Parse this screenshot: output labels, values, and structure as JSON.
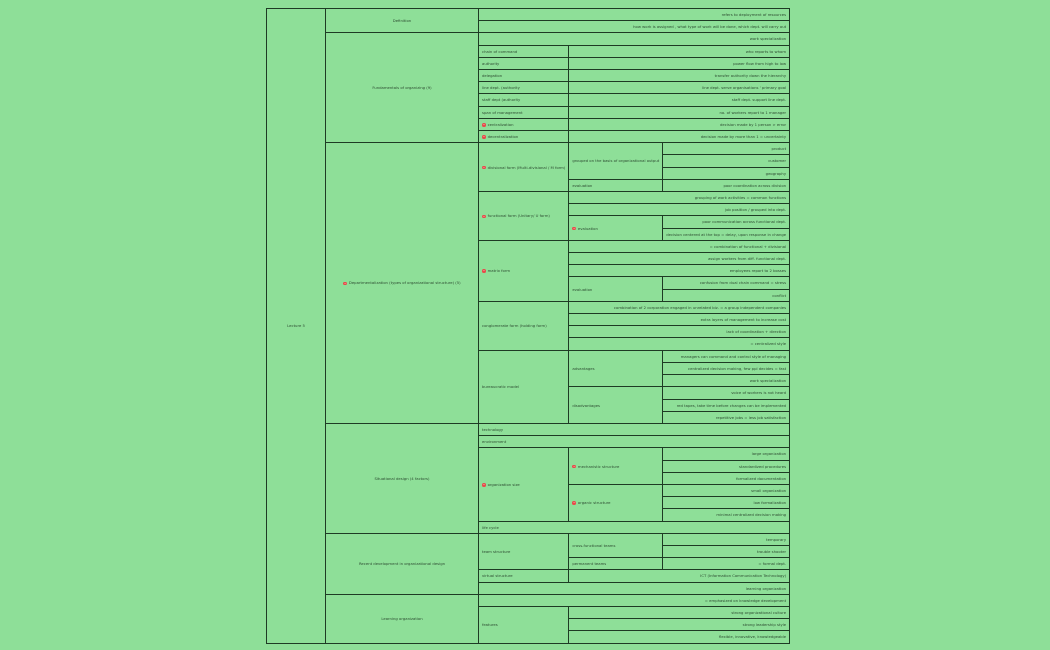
{
  "root": {
    "label": "Lecture 5"
  },
  "sections": [
    {
      "label": "Definition",
      "rows": [
        {
          "items": [
            {
              "text": "refers to deployment of resources",
              "cls": "leaf",
              "colspan": 3
            }
          ]
        },
        {
          "items": [
            {
              "text": "how work is assigned , what type of work will be done, which dept. will carry out",
              "cls": "leaf",
              "colspan": 3
            }
          ]
        }
      ]
    },
    {
      "label": "Fundamentals of organizing (9)",
      "rows": [
        {
          "items": [
            {
              "text": "work specialization",
              "cls": "leaf",
              "colspan": 3
            }
          ]
        },
        {
          "items": [
            {
              "text": "chain of command",
              "cls": "mid"
            },
            {
              "text": "who reports to whom",
              "cls": "leaf",
              "colspan": 2
            }
          ]
        },
        {
          "items": [
            {
              "text": "authority",
              "cls": "mid"
            },
            {
              "text": "power flow from high to low",
              "cls": "leaf",
              "colspan": 2
            }
          ]
        },
        {
          "items": [
            {
              "text": "delegation",
              "cls": "mid"
            },
            {
              "text": "transfer authority down the hierarchy",
              "cls": "leaf",
              "colspan": 2
            }
          ]
        },
        {
          "items": [
            {
              "text": "line dept. (authority",
              "cls": "mid"
            },
            {
              "text": "line dept. serve organisations ' primary goal",
              "cls": "leaf",
              "colspan": 2
            }
          ]
        },
        {
          "items": [
            {
              "text": "staff dept (authority",
              "cls": "mid"
            },
            {
              "text": "staff dept. support line dept.",
              "cls": "leaf",
              "colspan": 2
            }
          ]
        },
        {
          "items": [
            {
              "text": "span of management",
              "cls": "mid"
            },
            {
              "text": "no. of workers report to 1 manager",
              "cls": "leaf",
              "colspan": 2
            }
          ]
        },
        {
          "items": [
            {
              "text": "centralization",
              "cls": "mid",
              "marker": true
            },
            {
              "text": "decision made by 1 person > error",
              "cls": "leaf",
              "colspan": 2
            }
          ]
        },
        {
          "items": [
            {
              "text": "decentralization",
              "cls": "mid",
              "marker": true
            },
            {
              "text": "decision made by more than 1 = uncertainty",
              "cls": "leaf",
              "colspan": 2
            }
          ]
        }
      ]
    },
    {
      "label": "Departmentalization (types of organizational structure) (5)",
      "marker": true,
      "rows": [
        {
          "items": [
            {
              "text": "divisional form (Multi-divisional / M form)",
              "cls": "mid",
              "rowspan": 4,
              "marker": true
            },
            {
              "text": "grouped on the basis of organizational output",
              "cls": "mid",
              "rowspan": 3
            },
            {
              "text": "product",
              "cls": "leaf"
            }
          ]
        },
        {
          "items": [
            {
              "text": "customer",
              "cls": "leaf"
            }
          ]
        },
        {
          "items": [
            {
              "text": "geography",
              "cls": "leaf"
            }
          ]
        },
        {
          "items": [
            {
              "text": "evaluation",
              "cls": "mid"
            },
            {
              "text": "poor coordination across division",
              "cls": "leaf"
            }
          ]
        },
        {
          "items": [
            {
              "text": "functional form (Unitary/ U form)",
              "cls": "mid",
              "rowspan": 4,
              "marker": true
            },
            {
              "text": "grouping of work activities = common functions",
              "cls": "leaf",
              "colspan": 2
            }
          ]
        },
        {
          "items": [
            {
              "text": "job position / grouped into dept.",
              "cls": "leaf",
              "colspan": 2
            }
          ]
        },
        {
          "items": [
            {
              "text": "evaluation",
              "cls": "mid",
              "rowspan": 2,
              "marker": true
            },
            {
              "text": "poor communication across functional dept.",
              "cls": "leaf"
            }
          ]
        },
        {
          "items": [
            {
              "text": "decision centered at the top = delay, upon response in change",
              "cls": "leaf"
            }
          ]
        },
        {
          "items": [
            {
              "text": "matrix form",
              "cls": "mid",
              "rowspan": 5,
              "marker": true
            },
            {
              "text": "= combination of functional + divisional",
              "cls": "leaf",
              "colspan": 2
            }
          ]
        },
        {
          "items": [
            {
              "text": "assign workers from diff. functional dept.",
              "cls": "leaf",
              "colspan": 2
            }
          ]
        },
        {
          "items": [
            {
              "text": "employees report to 2 bosses",
              "cls": "leaf",
              "colspan": 2
            }
          ]
        },
        {
          "items": [
            {
              "text": "evaluation",
              "cls": "mid",
              "rowspan": 2
            },
            {
              "text": "confusion from dual chain command = stress",
              "cls": "leaf"
            }
          ]
        },
        {
          "items": [
            {
              "text": "conflict",
              "cls": "leaf"
            }
          ]
        },
        {
          "items": [
            {
              "text": "conglomerate form (holding form)",
              "cls": "mid",
              "rowspan": 4
            },
            {
              "text": "combination of 2 corporation engaged in unrelated biz. = a group independent companies",
              "cls": "leaf",
              "colspan": 2
            }
          ]
        },
        {
          "items": [
            {
              "text": "extra layers of management to increase cost",
              "cls": "leaf",
              "colspan": 2
            }
          ]
        },
        {
          "items": [
            {
              "text": "lack of coordination + direction",
              "cls": "leaf",
              "colspan": 2
            }
          ]
        },
        {
          "items": [
            {
              "text": "= centralized style",
              "cls": "leaf",
              "colspan": 2
            }
          ]
        },
        {
          "items": [
            {
              "text": "bureaucratic model",
              "cls": "mid",
              "rowspan": 6
            },
            {
              "text": "advantages",
              "cls": "mid",
              "rowspan": 3
            },
            {
              "text": "managers can command and control style of managing",
              "cls": "leaf"
            }
          ]
        },
        {
          "items": [
            {
              "text": "centralized decision making, few ppl decides = fast",
              "cls": "leaf"
            }
          ]
        },
        {
          "items": [
            {
              "text": "work specialization",
              "cls": "leaf"
            }
          ]
        },
        {
          "items": [
            {
              "text": "disadvantages",
              "cls": "mid",
              "rowspan": 3
            },
            {
              "text": "voice of workers is not heard",
              "cls": "leaf"
            }
          ]
        },
        {
          "items": [
            {
              "text": "red tapes, take time before changes can be implemented",
              "cls": "leaf"
            }
          ]
        },
        {
          "items": [
            {
              "text": "repetitive jobs = less job satisfaction",
              "cls": "leaf"
            }
          ]
        }
      ]
    },
    {
      "label": "Situational design (4 factors)",
      "rows": [
        {
          "items": [
            {
              "text": "technology",
              "cls": "mid",
              "colspan": 3
            }
          ]
        },
        {
          "items": [
            {
              "text": "environment",
              "cls": "mid",
              "colspan": 3
            }
          ]
        },
        {
          "items": [
            {
              "text": "organization size",
              "cls": "mid",
              "rowspan": 6,
              "marker": true
            },
            {
              "text": "mechanistic structure",
              "cls": "mid",
              "rowspan": 3,
              "marker": true
            },
            {
              "text": "large organization",
              "cls": "leaf"
            }
          ]
        },
        {
          "items": [
            {
              "text": "standardized procedures",
              "cls": "leaf"
            }
          ]
        },
        {
          "items": [
            {
              "text": "formalized documentation",
              "cls": "leaf"
            }
          ]
        },
        {
          "items": [
            {
              "text": "organic structure",
              "cls": "mid",
              "rowspan": 3,
              "marker": true
            },
            {
              "text": "small organization",
              "cls": "leaf"
            }
          ]
        },
        {
          "items": [
            {
              "text": "low formalization",
              "cls": "leaf"
            }
          ]
        },
        {
          "items": [
            {
              "text": "minimal centralized decision making",
              "cls": "leaf"
            }
          ]
        },
        {
          "items": [
            {
              "text": "life cycle",
              "cls": "mid",
              "colspan": 3
            }
          ]
        }
      ]
    },
    {
      "label": "Recent development in organizational design",
      "rows": [
        {
          "items": [
            {
              "text": "team structure",
              "cls": "mid",
              "rowspan": 3
            },
            {
              "text": "cross-functional teams",
              "cls": "mid",
              "rowspan": 2
            },
            {
              "text": "temporary",
              "cls": "leaf"
            }
          ]
        },
        {
          "items": [
            {
              "text": "trouble shooter",
              "cls": "leaf"
            }
          ]
        },
        {
          "items": [
            {
              "text": "permanent teams",
              "cls": "mid"
            },
            {
              "text": "= formal dept.",
              "cls": "leaf"
            }
          ]
        },
        {
          "items": [
            {
              "text": "virtual structure",
              "cls": "mid"
            },
            {
              "text": "ICT (Information Communication Technology)",
              "cls": "leaf",
              "colspan": 2
            }
          ]
        },
        {
          "items": [
            {
              "text": "learning organization",
              "cls": "leaf",
              "colspan": 3
            }
          ]
        }
      ]
    },
    {
      "label": "Learning organization",
      "rows": [
        {
          "items": [
            {
              "text": "= emphasized on knowledge development",
              "cls": "leaf",
              "colspan": 3
            }
          ]
        },
        {
          "items": [
            {
              "text": "features",
              "cls": "mid",
              "rowspan": 4
            },
            {
              "text": "strong organizational culture",
              "cls": "leaf",
              "colspan": 2
            }
          ]
        },
        {
          "items": [
            {
              "text": "strong leadership style",
              "cls": "leaf",
              "colspan": 2
            }
          ]
        },
        {
          "items": [
            {
              "text": "flexible, innovative, knowledgeable",
              "cls": "leaf",
              "colspan": 2
            }
          ]
        }
      ]
    }
  ]
}
